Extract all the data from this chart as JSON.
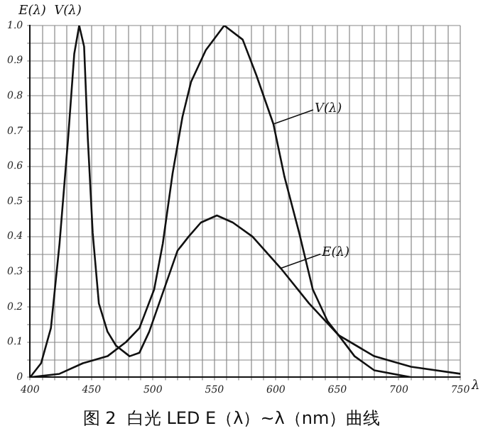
{
  "chart_data": {
    "type": "line",
    "title": "图 2  白光 LED E（λ）~λ（nm）曲线",
    "xlabel": "λ",
    "ylabel": "E(λ)  V(λ)",
    "xlim": [
      400,
      750
    ],
    "xticks": [
      400,
      {
        "value": 410,
        "label": null
      },
      {
        "value": 420,
        "label": null
      },
      {
        "value": 430,
        "label": null
      },
      {
        "value": 440,
        "label": null
      },
      450,
      {
        "value": 460,
        "label": null
      },
      {
        "value": 470,
        "label": null
      },
      {
        "value": 480,
        "label": null
      },
      {
        "value": 490,
        "label": null
      },
      500,
      {
        "value": 510,
        "label": null
      },
      {
        "value": 520,
        "label": null
      },
      {
        "value": 530,
        "label": null
      },
      {
        "value": 540,
        "label": null
      },
      550,
      {
        "value": 560,
        "label": null
      },
      {
        "value": 570,
        "label": null
      },
      {
        "value": 580,
        "label": null
      },
      {
        "value": 590,
        "label": null
      },
      600,
      {
        "value": 610,
        "label": null
      },
      {
        "value": 620,
        "label": null
      },
      {
        "value": 630,
        "label": null
      },
      {
        "value": 640,
        "label": null
      },
      650,
      {
        "value": 660,
        "label": null
      },
      {
        "value": 670,
        "label": null
      },
      {
        "value": 680,
        "label": null
      },
      {
        "value": 690,
        "label": null
      },
      700,
      {
        "value": 710,
        "label": null
      },
      {
        "value": 720,
        "label": null
      },
      {
        "value": 730,
        "label": null
      },
      {
        "value": 740,
        "label": null
      },
      750
    ],
    "ylim": [
      0,
      1.0
    ],
    "yticks": [
      0,
      {
        "value": 0.05,
        "label": null
      },
      {
        "value": 0.1,
        "label": "0.1"
      },
      {
        "value": 0.15,
        "label": null
      },
      {
        "value": 0.2,
        "label": "0.2"
      },
      {
        "value": 0.25,
        "label": null
      },
      {
        "value": 0.3,
        "label": "0.3"
      },
      {
        "value": 0.35,
        "label": null
      },
      {
        "value": 0.4,
        "label": "0.4"
      },
      {
        "value": 0.45,
        "label": null
      },
      {
        "value": 0.5,
        "label": "0.5"
      },
      {
        "value": 0.55,
        "label": null
      },
      {
        "value": 0.6,
        "label": "0.6"
      },
      {
        "value": 0.65,
        "label": null
      },
      {
        "value": 0.7,
        "label": "0.7"
      },
      {
        "value": 0.75,
        "label": null
      },
      {
        "value": 0.8,
        "label": "0.8"
      },
      {
        "value": 0.85,
        "label": null
      },
      {
        "value": 0.9,
        "label": "0.9"
      },
      {
        "value": 0.95,
        "label": null
      },
      {
        "value": 1.0,
        "label": "1.0"
      }
    ],
    "grid": true,
    "legend": false,
    "marker": "none",
    "line_style": "solid",
    "series": [
      {
        "color": "#111111",
        "x": [
          400,
          409,
          417,
          424,
          431,
          436,
          440,
          444,
          447,
          451,
          456,
          463,
          470,
          481,
          489,
          497,
          504,
          512,
          520,
          529,
          539,
          552,
          565,
          581,
          604,
          627,
          651,
          680,
          710,
          750
        ],
        "values": [
          0,
          0.04,
          0.14,
          0.38,
          0.68,
          0.92,
          1.0,
          0.94,
          0.68,
          0.41,
          0.21,
          0.13,
          0.09,
          0.06,
          0.07,
          0.13,
          0.2,
          0.28,
          0.36,
          0.4,
          0.44,
          0.46,
          0.44,
          0.4,
          0.31,
          0.21,
          0.12,
          0.06,
          0.03,
          0.01
        ]
      },
      {
        "color": "#111111",
        "x": [
          400,
          424,
          443,
          463,
          478,
          489,
          501,
          508,
          516,
          524,
          531,
          543,
          558,
          573,
          584,
          598,
          607,
          619,
          630,
          642,
          651,
          664,
          680,
          710
        ],
        "values": [
          0,
          0.01,
          0.04,
          0.06,
          0.1,
          0.14,
          0.25,
          0.38,
          0.58,
          0.74,
          0.84,
          0.93,
          1.0,
          0.96,
          0.86,
          0.72,
          0.57,
          0.41,
          0.25,
          0.16,
          0.12,
          0.06,
          0.02,
          0
        ]
      }
    ],
    "annotations": [
      {
        "text": "V(λ)",
        "x": 598,
        "y": 0.72
      },
      {
        "text": "E(λ)",
        "x": 604,
        "y": 0.31
      }
    ]
  }
}
